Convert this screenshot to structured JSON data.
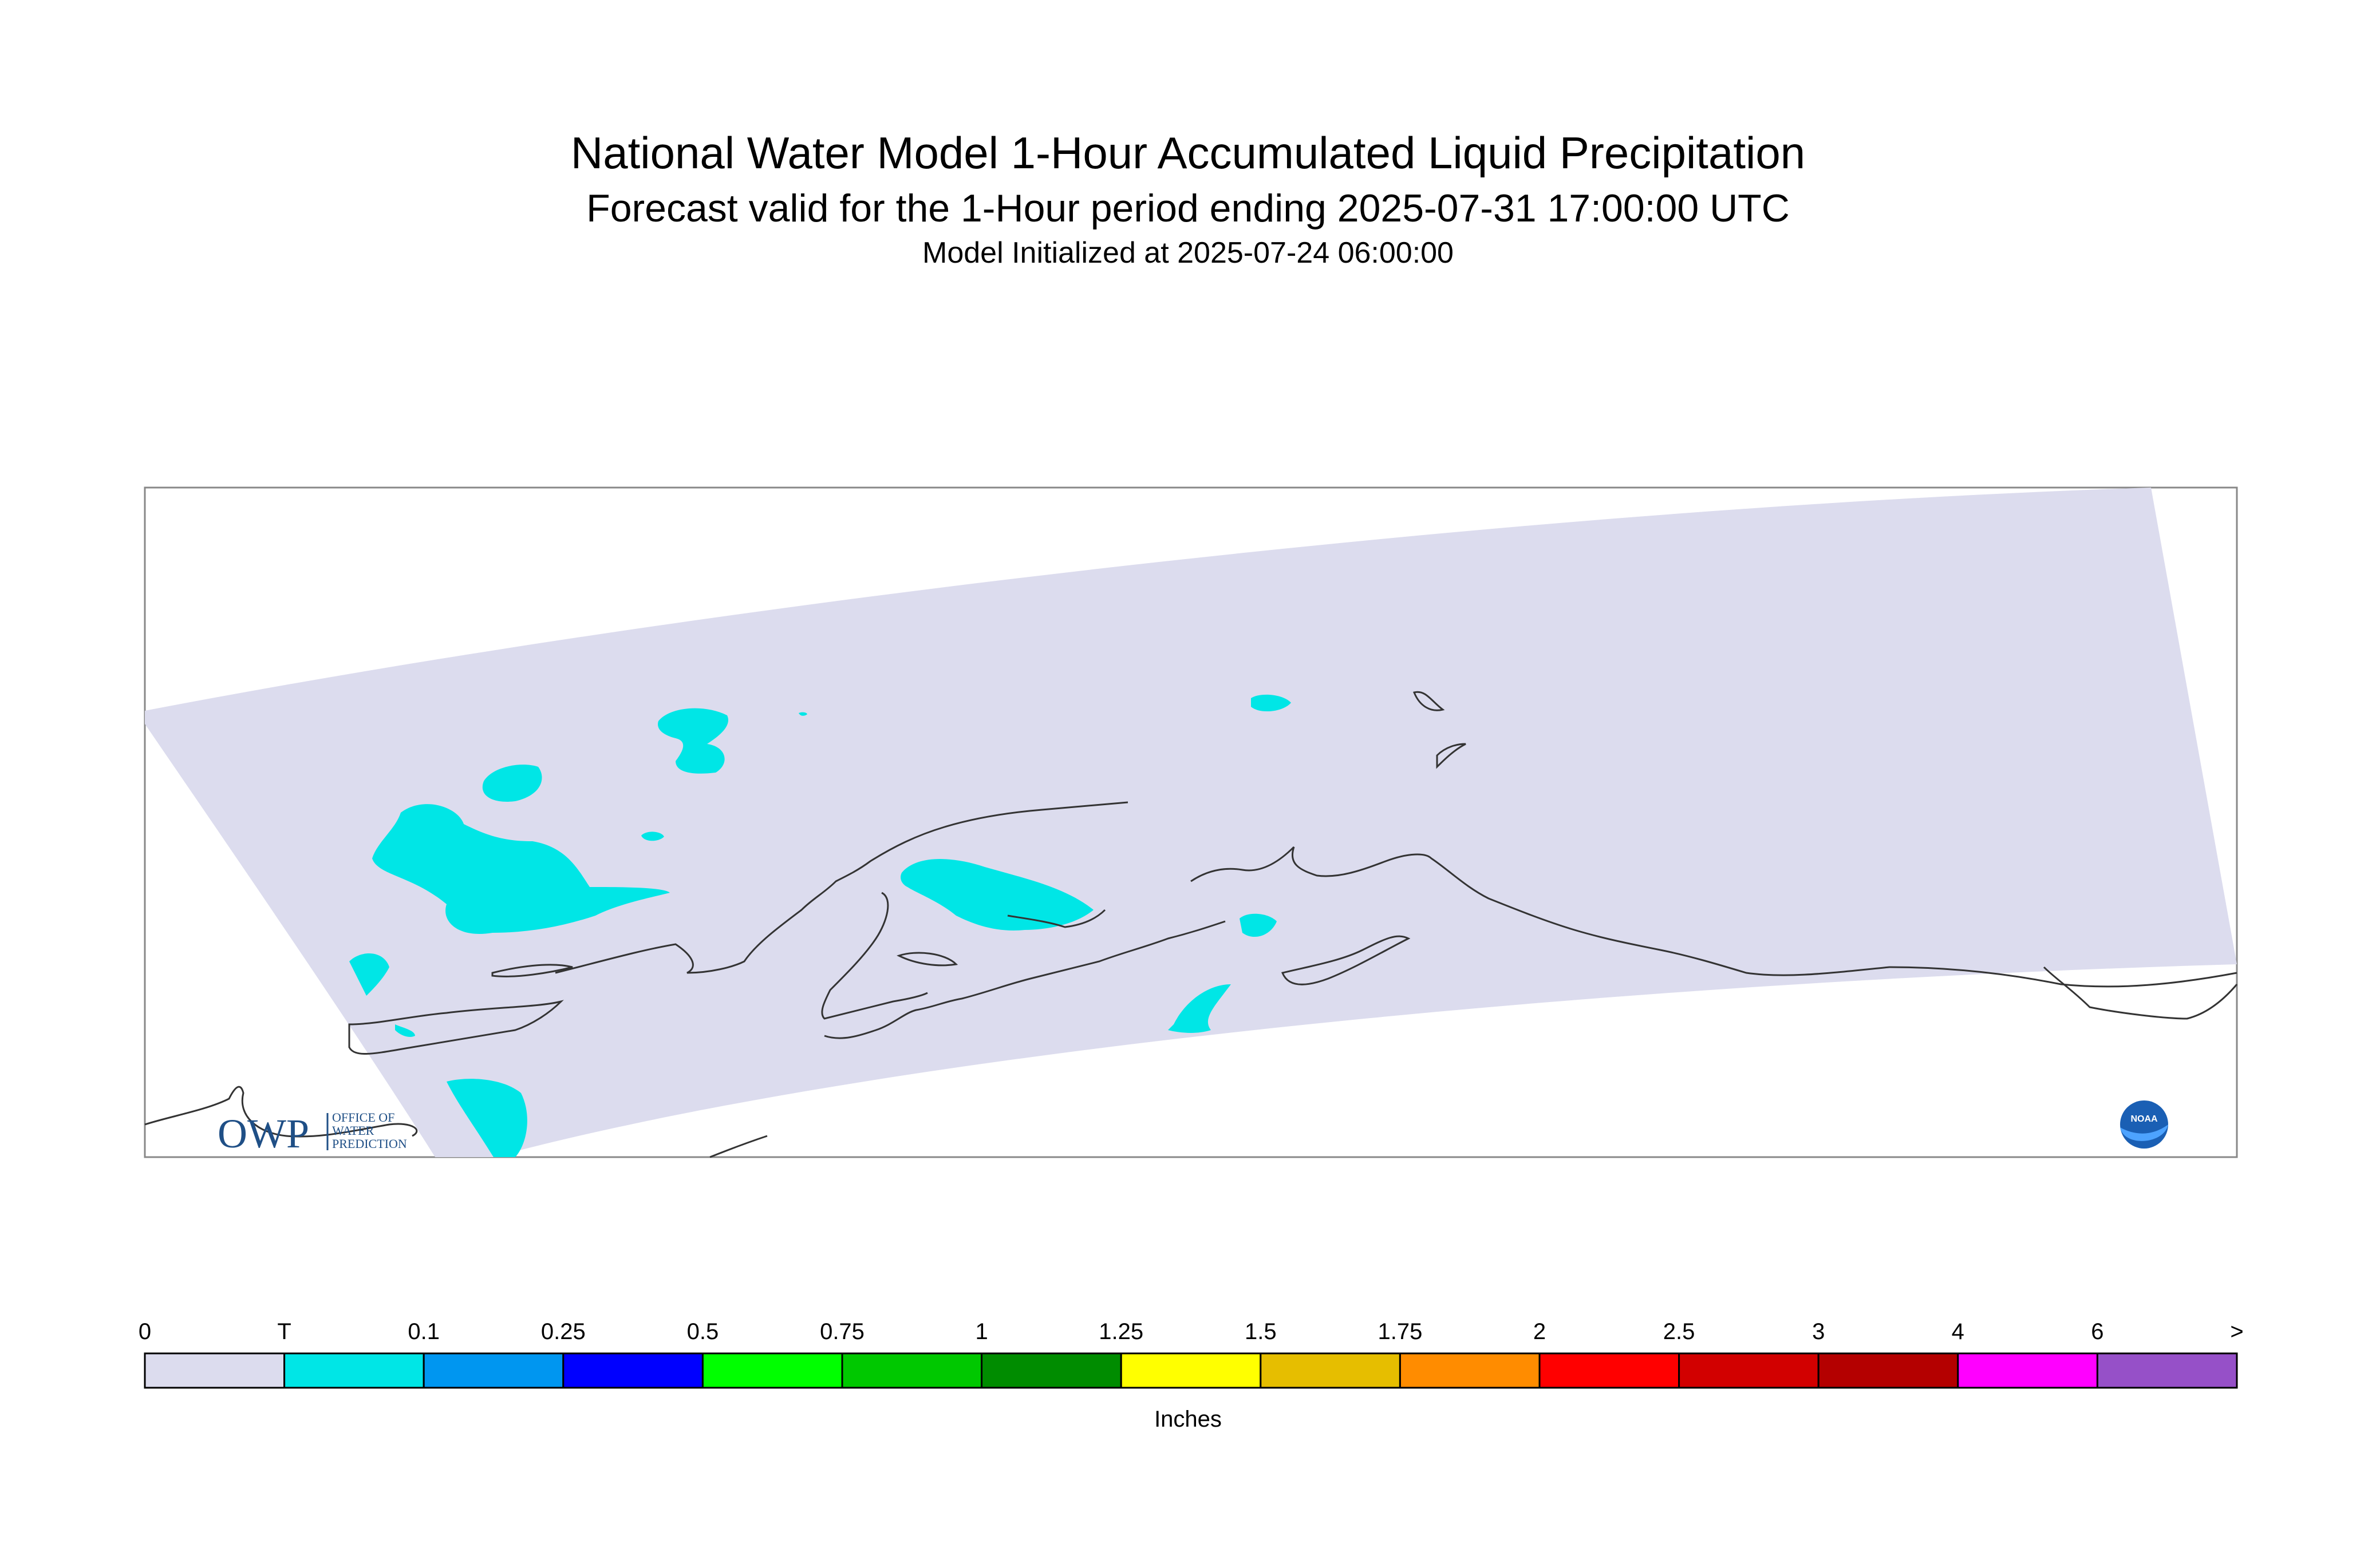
{
  "header": {
    "title": "National Water Model 1-Hour Accumulated Liquid Precipitation",
    "subtitle": "Forecast valid for the 1-Hour period ending 2025-07-31 17:00:00 UTC",
    "init": "Model Initialized at 2025-07-24 06:00:00"
  },
  "logos": {
    "owp": {
      "mark": "OWP",
      "text": [
        "OFFICE OF",
        "WATER",
        "PREDICTION"
      ]
    },
    "noaa": {
      "text": "NOAA"
    }
  },
  "colors": {
    "domain_fill": "#dcdcee",
    "trace_fill": "#00e6e6",
    "coastline": "#333333"
  },
  "legend": {
    "units": "Inches",
    "labels": [
      "0",
      "T",
      "0.1",
      "0.25",
      "0.5",
      "0.75",
      "1",
      "1.25",
      "1.5",
      "1.75",
      "2",
      "2.5",
      "3",
      "4",
      "6",
      ">"
    ],
    "colors": [
      "#dcdcee",
      "#00e6e6",
      "#0096f0",
      "#0000ff",
      "#00ff00",
      "#00c800",
      "#008c00",
      "#ffff00",
      "#e6be00",
      "#ff8c00",
      "#ff0000",
      "#d20000",
      "#b40000",
      "#ff00ff",
      "#9650c8"
    ]
  }
}
